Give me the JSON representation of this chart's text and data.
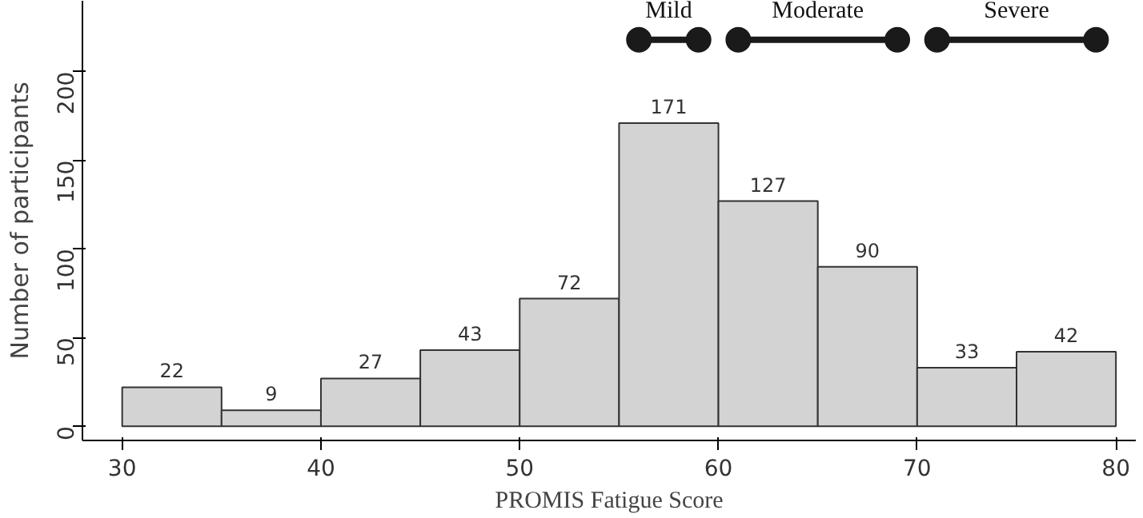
{
  "chart_data": {
    "type": "histogram",
    "xlabel": "PROMIS Fatigue Score",
    "ylabel": "Number of participants",
    "bins": [
      30,
      35,
      40,
      45,
      50,
      55,
      60,
      65,
      70,
      75,
      80
    ],
    "values": [
      22,
      9,
      27,
      43,
      72,
      171,
      127,
      90,
      33,
      42
    ],
    "color": "#d3d3d3",
    "value_labels": [
      "22",
      "9",
      "27",
      "43",
      "72",
      "171",
      "127",
      "90",
      "33",
      "42"
    ],
    "grid": false,
    "xlim": [
      28,
      81
    ],
    "ylim": [
      -8,
      240
    ],
    "xticks": [
      30,
      40,
      50,
      60,
      70,
      80
    ],
    "yticks": [
      0,
      50,
      100,
      150,
      200
    ],
    "series": [
      {
        "type": "line",
        "name": "Mild",
        "x": [
          56,
          59
        ],
        "values": [
          218,
          218
        ],
        "color": "#1a1a1a",
        "marker": "circle"
      },
      {
        "type": "line",
        "name": "Moderate",
        "x": [
          61,
          69
        ],
        "values": [
          218,
          218
        ],
        "color": "#1a1a1a",
        "marker": "circle"
      },
      {
        "type": "line",
        "name": "Severe",
        "x": [
          71,
          79
        ],
        "values": [
          218,
          218
        ],
        "color": "#1a1a1a",
        "marker": "circle"
      }
    ]
  }
}
